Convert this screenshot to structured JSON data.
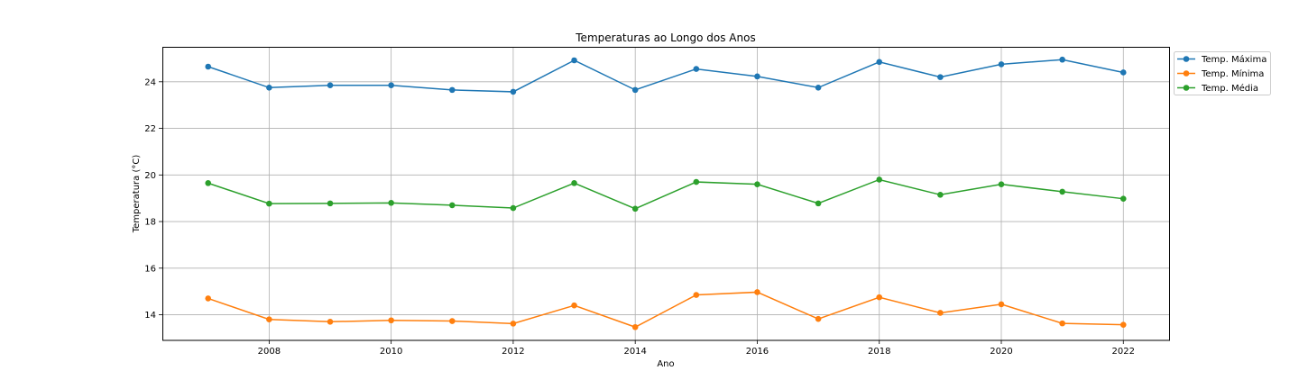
{
  "chart_data": {
    "type": "line",
    "title": "Temperaturas ao Longo dos Anos",
    "xlabel": "Ano",
    "ylabel": "Temperatura (°C)",
    "x": [
      2007,
      2008,
      2009,
      2010,
      2011,
      2012,
      2013,
      2014,
      2015,
      2016,
      2017,
      2018,
      2019,
      2020,
      2021,
      2022
    ],
    "xlim": [
      2006.25,
      2022.75
    ],
    "ylim": [
      12.9,
      25.5
    ],
    "xticks": [
      2008,
      2010,
      2012,
      2014,
      2016,
      2018,
      2020,
      2022
    ],
    "xtick_labels": [
      "2008",
      "2010",
      "2012",
      "2014",
      "2016",
      "2018",
      "2020",
      "2022"
    ],
    "yticks": [
      14,
      16,
      18,
      20,
      22,
      24
    ],
    "ytick_labels": [
      "14",
      "16",
      "18",
      "20",
      "22",
      "24"
    ],
    "grid": true,
    "legend_position": "outside-top-right",
    "series": [
      {
        "name": "Temp. Máxima",
        "color": "#1f77b4",
        "values": [
          24.65,
          23.75,
          23.85,
          23.85,
          23.65,
          23.57,
          24.92,
          23.65,
          24.55,
          24.23,
          23.75,
          24.85,
          24.2,
          24.75,
          24.95,
          24.4
        ]
      },
      {
        "name": "Temp. Mínima",
        "color": "#ff7f0e",
        "values": [
          14.7,
          13.8,
          13.7,
          13.76,
          13.73,
          13.62,
          14.4,
          13.47,
          14.85,
          14.97,
          13.82,
          14.75,
          14.08,
          14.45,
          13.63,
          13.57
        ]
      },
      {
        "name": "Temp. Média",
        "color": "#2ca02c",
        "values": [
          19.65,
          18.77,
          18.78,
          18.8,
          18.7,
          18.58,
          19.65,
          18.55,
          19.7,
          19.6,
          18.78,
          19.8,
          19.15,
          19.6,
          19.28,
          18.98
        ]
      }
    ]
  }
}
